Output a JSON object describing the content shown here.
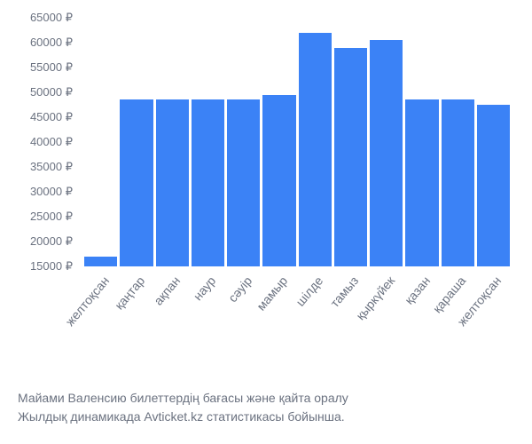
{
  "chart": {
    "type": "bar",
    "ymin": 15000,
    "ymax": 65000,
    "ytick_step": 5000,
    "currency_symbol": "₽",
    "bar_color": "#3b82f6",
    "text_color": "#6b7280",
    "background_color": "#ffffff",
    "axis_fontsize": 13,
    "label_fontsize": 14,
    "yticks": [
      {
        "value": 65000,
        "label": "65000 ₽"
      },
      {
        "value": 60000,
        "label": "60000 ₽"
      },
      {
        "value": 55000,
        "label": "55000 ₽"
      },
      {
        "value": 50000,
        "label": "50000 ₽"
      },
      {
        "value": 45000,
        "label": "45000 ₽"
      },
      {
        "value": 40000,
        "label": "40000 ₽"
      },
      {
        "value": 35000,
        "label": "35000 ₽"
      },
      {
        "value": 30000,
        "label": "30000 ₽"
      },
      {
        "value": 25000,
        "label": "25000 ₽"
      },
      {
        "value": 20000,
        "label": "20000 ₽"
      },
      {
        "value": 15000,
        "label": "15000 ₽"
      }
    ],
    "categories": [
      "желтоқсан",
      "қаңтар",
      "ақпан",
      "наур",
      "сәуір",
      "мамыр",
      "шілде",
      "тамыз",
      "қыркүйек",
      "қазан",
      "қараша",
      "желтоқсан"
    ],
    "values": [
      17000,
      48500,
      48500,
      48500,
      48500,
      49500,
      62000,
      59000,
      60500,
      48500,
      48500,
      47500
    ]
  },
  "caption": {
    "line1": "Майами Валенсию билеттердің бағасы және қайта оралу",
    "line2": "Жылдық динамикада Avticket.kz статистикасы бойынша."
  }
}
